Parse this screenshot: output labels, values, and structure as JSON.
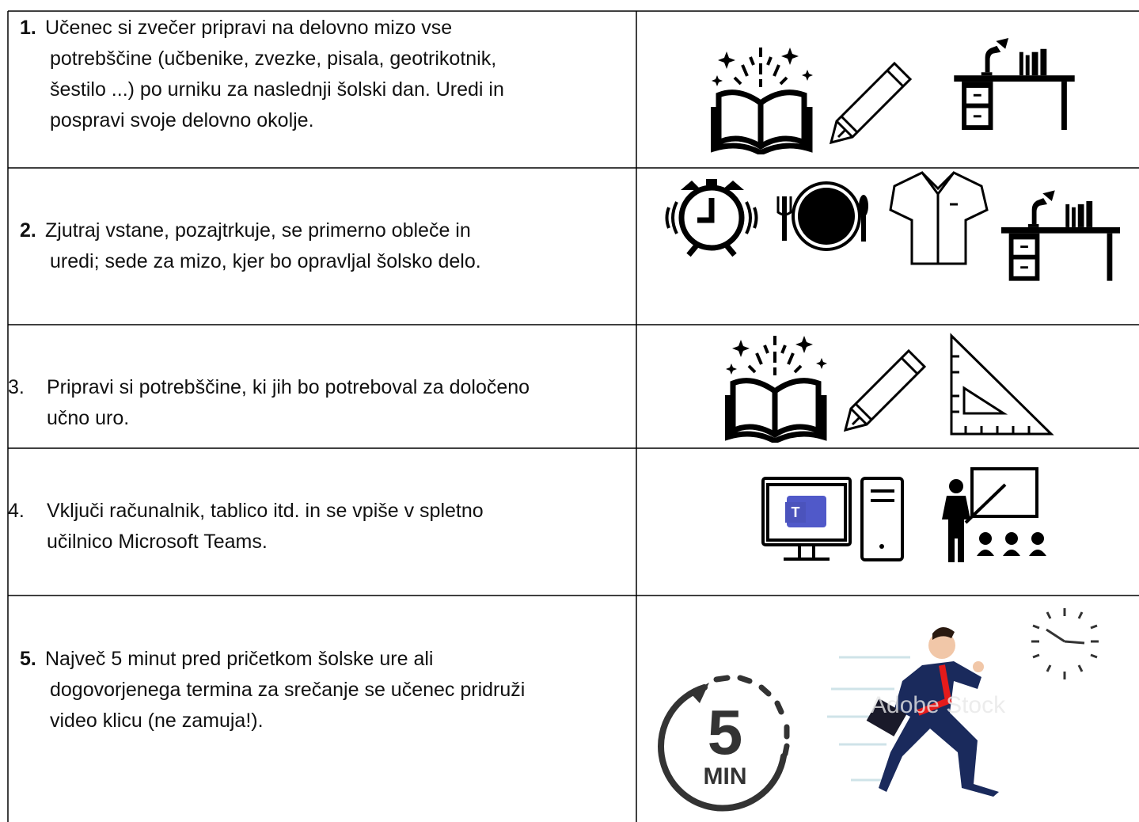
{
  "table": {
    "rows": [
      {
        "number": "1.",
        "number_bold": true,
        "lines": [
          "Učenec si zvečer pripravi na delovno mizo vse",
          "potrebščine (učbenike, zvezke, pisala, geotrikotnik,",
          "šestilo ...) po urniku za naslednji šolski dan. Uredi in",
          "pospravi svoje delovno okolje."
        ]
      },
      {
        "number": "2.",
        "number_bold": true,
        "lines": [
          "Zjutraj vstane, pozajtrkuje, se primerno obleče in",
          "uredi; sede za mizo, kjer bo opravljal šolsko delo."
        ]
      },
      {
        "number": "3.",
        "number_bold": false,
        "lines": [
          "Pripravi si potrebščine, ki jih bo potreboval za določeno",
          "učno uro."
        ]
      },
      {
        "number": "4.",
        "number_bold": false,
        "lines": [
          "Vključi računalnik, tablico itd. in se vpiše v spletno",
          "učilnico Microsoft Teams."
        ]
      },
      {
        "number": "5.",
        "number_bold": true,
        "lines": [
          "Največ 5 minut pred pričetkom šolske ure ali",
          "dogovorjenega termina za srečanje se učenec pridruži",
          "video klicu (ne zamuja!)."
        ]
      }
    ]
  },
  "icons": {
    "timer_number": "5",
    "timer_unit": "MIN",
    "watermark": "Adobe Stock"
  }
}
